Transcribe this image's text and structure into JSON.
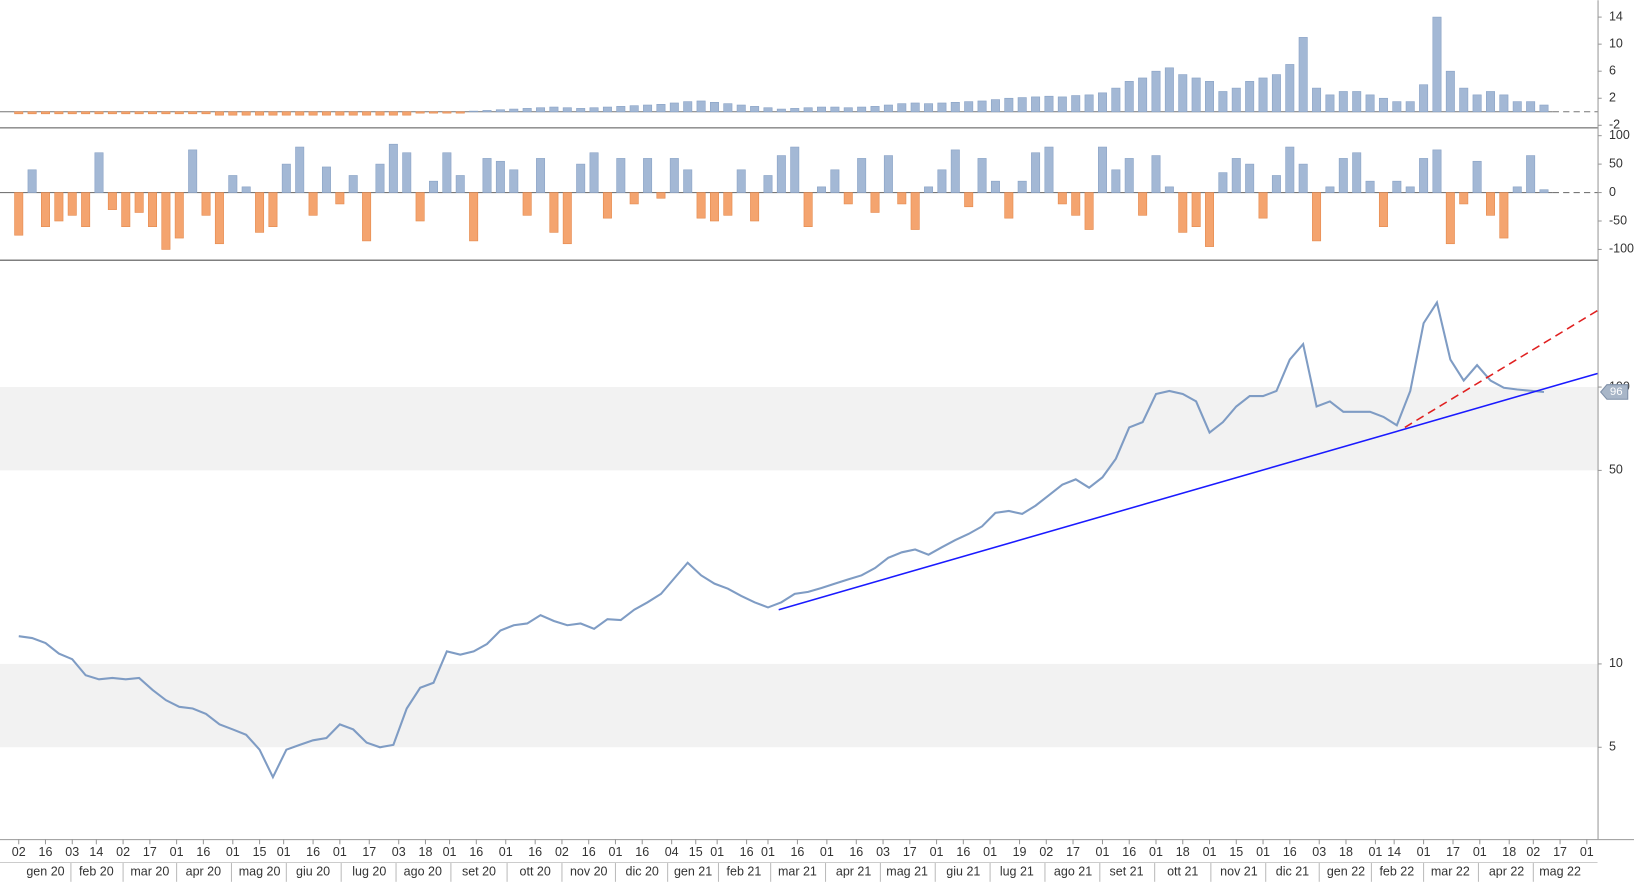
{
  "chart_data": [
    {
      "type": "bar",
      "color": "#a3b8d5",
      "negative_color": "#f4a46f",
      "ylim": [
        -2.3,
        16.5
      ],
      "yticks": [
        14,
        10,
        6,
        2,
        -2
      ],
      "x": [
        0,
        5,
        10,
        15,
        20,
        25,
        30,
        35,
        40,
        45,
        50,
        55,
        60,
        65,
        70,
        75,
        80,
        85,
        90,
        95,
        100,
        105,
        110,
        115,
        120,
        125,
        130,
        135,
        140,
        145,
        150,
        155,
        160,
        165,
        170,
        175,
        180,
        185,
        190,
        195,
        200,
        205,
        210,
        215,
        220,
        225,
        230,
        235,
        240,
        245,
        250,
        255,
        260,
        265,
        270,
        275,
        280,
        285,
        290,
        295,
        300,
        305,
        310,
        315,
        320,
        325,
        330,
        335,
        340,
        345,
        350,
        355,
        360,
        365,
        370,
        375,
        380,
        385,
        390,
        395,
        400,
        405,
        410,
        415,
        420,
        425,
        430,
        435,
        440,
        445,
        450,
        455,
        460,
        465,
        470,
        475,
        480,
        485,
        490,
        495,
        500,
        505,
        510,
        515,
        520,
        525,
        530,
        535,
        540,
        545,
        550,
        555,
        560,
        565,
        570
      ],
      "values": [
        -0.3,
        -0.3,
        -0.3,
        -0.3,
        -0.3,
        -0.3,
        -0.3,
        -0.3,
        -0.3,
        -0.3,
        -0.3,
        -0.3,
        -0.3,
        -0.3,
        -0.3,
        -0.5,
        -0.5,
        -0.5,
        -0.5,
        -0.5,
        -0.5,
        -0.5,
        -0.5,
        -0.5,
        -0.5,
        -0.5,
        -0.5,
        -0.5,
        -0.5,
        -0.5,
        -0.2,
        -0.2,
        -0.2,
        -0.2,
        0.1,
        0.2,
        0.3,
        0.4,
        0.5,
        0.6,
        0.7,
        0.6,
        0.5,
        0.6,
        0.7,
        0.8,
        0.9,
        1.0,
        1.1,
        1.3,
        1.5,
        1.6,
        1.4,
        1.2,
        1.0,
        0.8,
        0.6,
        0.4,
        0.5,
        0.6,
        0.7,
        0.7,
        0.6,
        0.7,
        0.8,
        1.0,
        1.2,
        1.3,
        1.2,
        1.3,
        1.4,
        1.5,
        1.6,
        1.8,
        2.0,
        2.1,
        2.2,
        2.3,
        2.2,
        2.4,
        2.5,
        2.8,
        3.5,
        4.5,
        5.0,
        6.0,
        6.5,
        5.5,
        5.0,
        4.5,
        3.0,
        3.5,
        4.5,
        5.0,
        5.5,
        7.0,
        11.0,
        3.5,
        2.5,
        3.0,
        3.0,
        2.5,
        2.0,
        1.5,
        1.5,
        4.0,
        14.0,
        6.0,
        3.5,
        2.5,
        3.0,
        2.5,
        1.5,
        1.5,
        1.0
      ]
    },
    {
      "type": "bar",
      "color": "#a3b8d5",
      "negative_color": "#f4a46f",
      "ylim": [
        -118,
        111
      ],
      "yticks": [
        100,
        50,
        0,
        -50,
        -100
      ],
      "x": [
        0,
        5,
        10,
        15,
        20,
        25,
        30,
        35,
        40,
        45,
        50,
        55,
        60,
        65,
        70,
        75,
        80,
        85,
        90,
        95,
        100,
        105,
        110,
        115,
        120,
        125,
        130,
        135,
        140,
        145,
        150,
        155,
        160,
        165,
        170,
        175,
        180,
        185,
        190,
        195,
        200,
        205,
        210,
        215,
        220,
        225,
        230,
        235,
        240,
        245,
        250,
        255,
        260,
        265,
        270,
        275,
        280,
        285,
        290,
        295,
        300,
        305,
        310,
        315,
        320,
        325,
        330,
        335,
        340,
        345,
        350,
        355,
        360,
        365,
        370,
        375,
        380,
        385,
        390,
        395,
        400,
        405,
        410,
        415,
        420,
        425,
        430,
        435,
        440,
        445,
        450,
        455,
        460,
        465,
        470,
        475,
        480,
        485,
        490,
        495,
        500,
        505,
        510,
        515,
        520,
        525,
        530,
        535,
        540,
        545,
        550,
        555,
        560,
        565,
        570
      ],
      "values": [
        -75,
        40,
        -60,
        -50,
        -40,
        -60,
        70,
        -30,
        -60,
        -35,
        -60,
        -100,
        -80,
        75,
        -40,
        -90,
        30,
        10,
        -70,
        -60,
        50,
        80,
        -40,
        45,
        -20,
        30,
        -85,
        50,
        85,
        70,
        -50,
        20,
        70,
        30,
        -85,
        60,
        55,
        40,
        -40,
        60,
        -70,
        -90,
        50,
        70,
        -45,
        60,
        -20,
        60,
        -10,
        60,
        40,
        -45,
        -50,
        -40,
        40,
        -50,
        30,
        65,
        80,
        -60,
        10,
        40,
        -20,
        60,
        -35,
        65,
        -20,
        -65,
        10,
        40,
        75,
        -25,
        60,
        20,
        -45,
        20,
        70,
        80,
        -20,
        -40,
        -65,
        80,
        40,
        60,
        -40,
        65,
        10,
        -70,
        -60,
        -95,
        35,
        60,
        50,
        -45,
        30,
        80,
        50,
        -85,
        10,
        60,
        70,
        20,
        -60,
        20,
        10,
        60,
        75,
        -90,
        -20,
        55,
        -40,
        -80,
        10,
        65,
        5
      ]
    },
    {
      "type": "line",
      "color": "#7f9cc4",
      "log_scale": true,
      "ylim": [
        2.33,
        286
      ],
      "yticks": [
        5,
        10,
        50,
        100
      ],
      "bands": [
        [
          5,
          10
        ],
        [
          50,
          100
        ]
      ],
      "band_color": "#f2f2f2",
      "last_price": 96,
      "xlim": [
        -7,
        590
      ],
      "xticks": [
        {
          "value": 0,
          "label": "02"
        },
        {
          "value": 10,
          "label": "16"
        },
        {
          "value": 20,
          "label": "03"
        },
        {
          "value": 29,
          "label": "14"
        },
        {
          "value": 39,
          "label": "02"
        },
        {
          "value": 49,
          "label": "17"
        },
        {
          "value": 59,
          "label": "01"
        },
        {
          "value": 69,
          "label": "16"
        },
        {
          "value": 80,
          "label": "01"
        },
        {
          "value": 90,
          "label": "15"
        },
        {
          "value": 99,
          "label": "01"
        },
        {
          "value": 110,
          "label": "16"
        },
        {
          "value": 120,
          "label": "01"
        },
        {
          "value": 131,
          "label": "17"
        },
        {
          "value": 142,
          "label": "03"
        },
        {
          "value": 152,
          "label": "18"
        },
        {
          "value": 161,
          "label": "01"
        },
        {
          "value": 171,
          "label": "16"
        },
        {
          "value": 182,
          "label": "01"
        },
        {
          "value": 193,
          "label": "16"
        },
        {
          "value": 203,
          "label": "02"
        },
        {
          "value": 213,
          "label": "16"
        },
        {
          "value": 223,
          "label": "01"
        },
        {
          "value": 233,
          "label": "16"
        },
        {
          "value": 244,
          "label": "04"
        },
        {
          "value": 253,
          "label": "15"
        },
        {
          "value": 261,
          "label": "01"
        },
        {
          "value": 272,
          "label": "16"
        },
        {
          "value": 280,
          "label": "01"
        },
        {
          "value": 291,
          "label": "16"
        },
        {
          "value": 302,
          "label": "01"
        },
        {
          "value": 313,
          "label": "16"
        },
        {
          "value": 323,
          "label": "03"
        },
        {
          "value": 333,
          "label": "17"
        },
        {
          "value": 343,
          "label": "01"
        },
        {
          "value": 353,
          "label": "16"
        },
        {
          "value": 363,
          "label": "01"
        },
        {
          "value": 374,
          "label": "19"
        },
        {
          "value": 384,
          "label": "02"
        },
        {
          "value": 394,
          "label": "17"
        },
        {
          "value": 405,
          "label": "01"
        },
        {
          "value": 415,
          "label": "16"
        },
        {
          "value": 425,
          "label": "01"
        },
        {
          "value": 435,
          "label": "18"
        },
        {
          "value": 445,
          "label": "01"
        },
        {
          "value": 455,
          "label": "15"
        },
        {
          "value": 465,
          "label": "01"
        },
        {
          "value": 475,
          "label": "16"
        },
        {
          "value": 486,
          "label": "03"
        },
        {
          "value": 496,
          "label": "18"
        },
        {
          "value": 507,
          "label": "01"
        },
        {
          "value": 514,
          "label": "14"
        },
        {
          "value": 525,
          "label": "01"
        },
        {
          "value": 536,
          "label": "17"
        },
        {
          "value": 546,
          "label": "01"
        },
        {
          "value": 557,
          "label": "18"
        },
        {
          "value": 566,
          "label": "02"
        },
        {
          "value": 576,
          "label": "17"
        },
        {
          "value": 586,
          "label": "01"
        }
      ],
      "xticks_major": [
        {
          "value": 10,
          "label": "gen 20"
        },
        {
          "value": 29,
          "label": "feb 20"
        },
        {
          "value": 49,
          "label": "mar 20"
        },
        {
          "value": 69,
          "label": "apr 20"
        },
        {
          "value": 90,
          "label": "mag 20"
        },
        {
          "value": 110,
          "label": "giu 20"
        },
        {
          "value": 131,
          "label": "lug 20"
        },
        {
          "value": 151,
          "label": "ago 20"
        },
        {
          "value": 172,
          "label": "set 20"
        },
        {
          "value": 193,
          "label": "ott 20"
        },
        {
          "value": 213,
          "label": "nov 20"
        },
        {
          "value": 233,
          "label": "dic 20"
        },
        {
          "value": 252,
          "label": "gen 21"
        },
        {
          "value": 271,
          "label": "feb 21"
        },
        {
          "value": 291,
          "label": "mar 21"
        },
        {
          "value": 312,
          "label": "apr 21"
        },
        {
          "value": 332,
          "label": "mag 21"
        },
        {
          "value": 353,
          "label": "giu 21"
        },
        {
          "value": 373,
          "label": "lug 21"
        },
        {
          "value": 394,
          "label": "ago 21"
        },
        {
          "value": 414,
          "label": "set 21"
        },
        {
          "value": 435,
          "label": "ott 21"
        },
        {
          "value": 456,
          "label": "nov 21"
        },
        {
          "value": 476,
          "label": "dic 21"
        },
        {
          "value": 496,
          "label": "gen 22"
        },
        {
          "value": 515,
          "label": "feb 22"
        },
        {
          "value": 535,
          "label": "mar 22"
        },
        {
          "value": 556,
          "label": "apr 22"
        },
        {
          "value": 576,
          "label": "mag 22"
        }
      ],
      "x": [
        0,
        5,
        10,
        15,
        20,
        25,
        30,
        35,
        40,
        45,
        50,
        55,
        60,
        65,
        70,
        75,
        80,
        85,
        90,
        95,
        100,
        105,
        110,
        115,
        120,
        125,
        130,
        135,
        140,
        145,
        150,
        155,
        160,
        165,
        170,
        175,
        180,
        185,
        190,
        195,
        200,
        205,
        210,
        215,
        220,
        225,
        230,
        235,
        240,
        245,
        250,
        255,
        260,
        265,
        270,
        275,
        280,
        285,
        290,
        295,
        300,
        305,
        310,
        315,
        320,
        325,
        330,
        335,
        340,
        345,
        350,
        355,
        360,
        365,
        370,
        375,
        380,
        385,
        390,
        395,
        400,
        405,
        410,
        415,
        420,
        425,
        430,
        435,
        440,
        445,
        450,
        455,
        460,
        465,
        470,
        475,
        480,
        485,
        490,
        495,
        500,
        505,
        510,
        515,
        520,
        525,
        530,
        535,
        540,
        545,
        550,
        555,
        560,
        565,
        570
      ],
      "values": [
        12.6,
        12.4,
        11.9,
        10.9,
        10.4,
        9.1,
        8.8,
        8.9,
        8.8,
        8.9,
        8.05,
        7.4,
        7.0,
        6.9,
        6.6,
        6.05,
        5.8,
        5.55,
        4.9,
        3.9,
        4.9,
        5.1,
        5.3,
        5.4,
        6.05,
        5.8,
        5.2,
        5.0,
        5.1,
        6.9,
        8.2,
        8.55,
        11.1,
        10.8,
        11.1,
        11.8,
        13.2,
        13.8,
        14.0,
        15.0,
        14.3,
        13.8,
        14.0,
        13.4,
        14.5,
        14.4,
        15.7,
        16.7,
        17.9,
        20.4,
        23.2,
        20.9,
        19.5,
        18.7,
        17.6,
        16.7,
        16.0,
        16.7,
        17.9,
        18.2,
        18.8,
        19.5,
        20.2,
        20.9,
        22.2,
        24.2,
        25.3,
        25.9,
        24.8,
        26.4,
        28.0,
        29.5,
        31.4,
        35.1,
        35.7,
        34.8,
        37.3,
        40.7,
        44.4,
        46.4,
        43.3,
        47.2,
        55.1,
        71.5,
        74.7,
        94.4,
        96.8,
        94.4,
        88.8,
        68.5,
        74.7,
        85.1,
        92.8,
        92.8,
        96.8,
        125.6,
        143,
        85.1,
        88.8,
        81.4,
        81.4,
        81.4,
        78.0,
        72.8,
        96.8,
        170,
        202,
        125.6,
        105.6,
        120,
        105.6,
        99.4,
        98,
        97,
        96
      ],
      "trendlines": [
        {
          "color": "#1a1aff",
          "dashed": false,
          "x": [
            284,
            590
          ],
          "values": [
            15.7,
            112
          ]
        },
        {
          "color": "#e02020",
          "dashed": true,
          "x": [
            518,
            590
          ],
          "values": [
            71.5,
            189
          ]
        }
      ]
    }
  ]
}
